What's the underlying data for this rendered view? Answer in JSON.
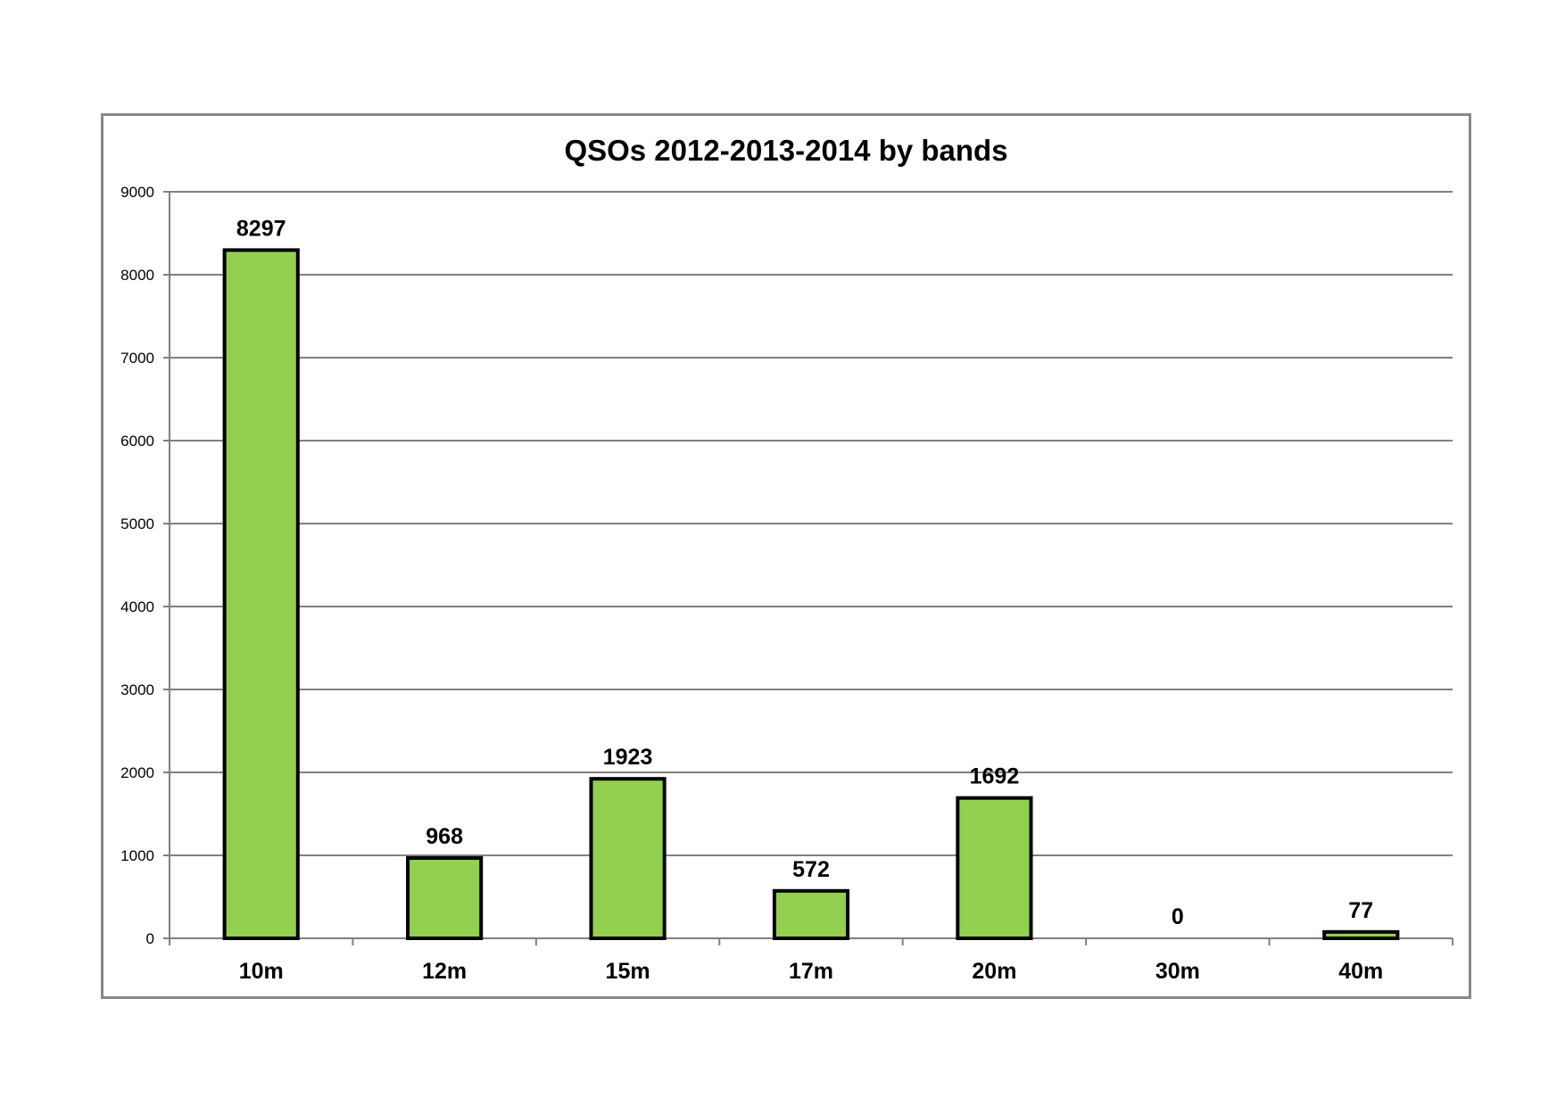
{
  "chart_data": {
    "type": "bar",
    "title": "QSOs 2012-2013-2014 by bands",
    "xlabel": "",
    "ylabel": "",
    "categories": [
      "10m",
      "12m",
      "15m",
      "17m",
      "20m",
      "30m",
      "40m"
    ],
    "values": [
      8297,
      968,
      1923,
      572,
      1692,
      0,
      77
    ],
    "data_labels": [
      "8297",
      "968",
      "1923",
      "572",
      "1692",
      "0",
      "77"
    ],
    "ylim": [
      0,
      9000
    ],
    "y_ticks": [
      0,
      1000,
      2000,
      3000,
      4000,
      5000,
      6000,
      7000,
      8000,
      9000
    ],
    "y_tick_labels": [
      "0",
      "1000",
      "2000",
      "3000",
      "4000",
      "5000",
      "6000",
      "7000",
      "8000",
      "9000"
    ],
    "grid": true,
    "legend": "none",
    "bar_color": "#92d050",
    "bar_edge_color": "#000000",
    "grid_color": "#808080",
    "frame_color": "#888888"
  }
}
